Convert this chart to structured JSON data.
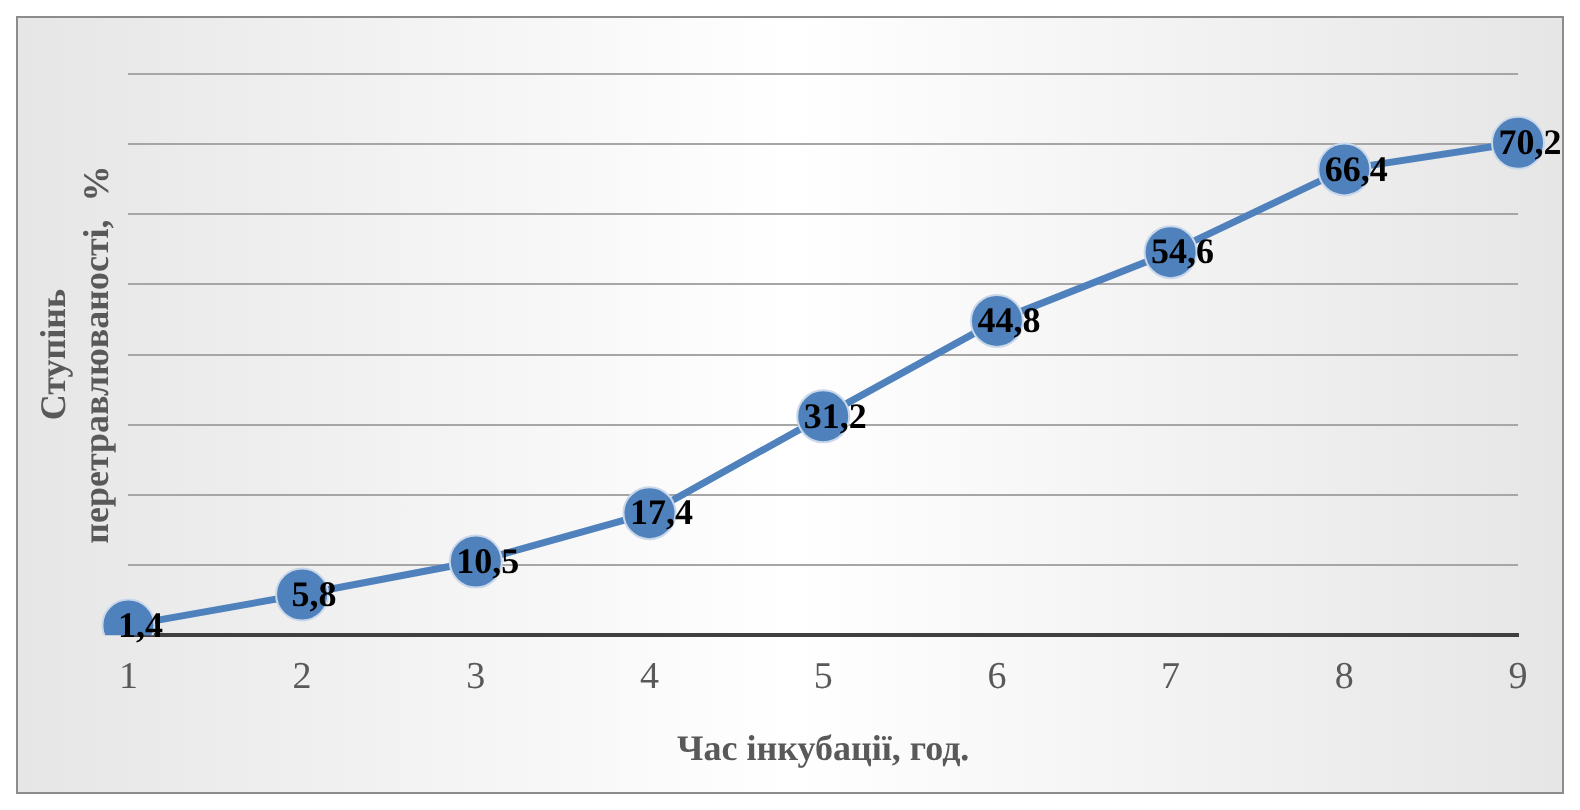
{
  "chart_data": {
    "type": "line",
    "xlabel": "Час інкубації, год.",
    "ylabel": "Ступінь перетравлюваності,  %",
    "categories": [
      "1",
      "2",
      "3",
      "4",
      "5",
      "6",
      "7",
      "8",
      "9"
    ],
    "series": [
      {
        "color": "#4f81bd",
        "values": [
          1.4,
          5.8,
          10.5,
          17.4,
          31.2,
          44.8,
          54.6,
          66.4,
          70.2
        ],
        "value_labels": [
          "1,4",
          "5,8",
          "10,5",
          "17,4",
          "31,2",
          "44,8",
          "54,6",
          "66,4",
          "70,2"
        ]
      }
    ],
    "ylim": [
      0,
      80
    ],
    "yticks": [
      {
        "value": 0,
        "label": null
      },
      {
        "value": 10,
        "label": null
      },
      {
        "value": 20,
        "label": null
      },
      {
        "value": 30,
        "label": null
      },
      {
        "value": 40,
        "label": null
      },
      {
        "value": 50,
        "label": null
      },
      {
        "value": 60,
        "label": null
      },
      {
        "value": 70,
        "label": null
      },
      {
        "value": 80,
        "label": null
      }
    ],
    "grid": "y",
    "tick_labels": "x",
    "marker": "circle",
    "line_style": "solid",
    "legend": false
  }
}
